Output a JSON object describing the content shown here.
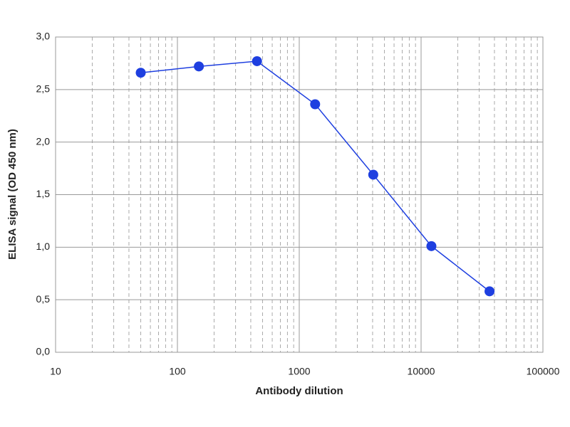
{
  "chart_data": {
    "type": "line",
    "x_label": "Antibody dilution",
    "y_label": "ELISA signal (OD 450 nm)",
    "x": [
      50,
      150,
      450,
      1350,
      4050,
      12150,
      36450
    ],
    "series": [
      {
        "color": "#1e3fe0",
        "values": [
          2.66,
          2.72,
          2.77,
          2.36,
          1.69,
          1.01,
          0.58
        ]
      }
    ],
    "xlim": [
      10,
      100000
    ],
    "xscale": "log",
    "xticks": [
      10,
      100,
      1000,
      10000,
      100000
    ],
    "ylim": [
      0,
      3
    ],
    "yticks": [
      {
        "value": 0,
        "label": "0,0"
      },
      {
        "value": 0.5,
        "label": "0,5"
      },
      {
        "value": 1,
        "label": "1,0"
      },
      {
        "value": 1.5,
        "label": "1,5"
      },
      {
        "value": 2,
        "label": "2,0"
      },
      {
        "value": 2.5,
        "label": "2,5"
      },
      {
        "value": 3,
        "label": "3,0"
      }
    ],
    "grid": true
  }
}
